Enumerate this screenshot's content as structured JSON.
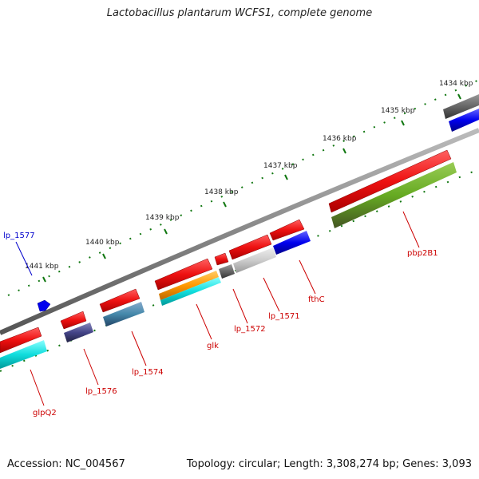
{
  "title": "Lactobacillus plantarum WCFS1, complete genome",
  "accession": "Accession: NC_004567",
  "footer_info": "Topology: circular; Length: 3,308,274 bp; Genes: 3,093",
  "ruler": [
    "1434 kbp",
    "1435 kbp",
    "1436 kbp",
    "1437 kbp",
    "1438 kbp",
    "1439 kbp",
    "1440 kbp",
    "1441 kbp"
  ],
  "gene_labels": {
    "lp_1577": "lp_1577",
    "pbp2B1": "pbp2B1",
    "fthC": "fthC",
    "lp_1571": "lp_1571",
    "lp_1572": "lp_1572",
    "glk": "glk",
    "lp_1574": "lp_1574",
    "lp_1576": "lp_1576",
    "glpQ2": "glpQ2"
  },
  "colors": {
    "gene_red": "#ee1111",
    "label_red": "#cc0000",
    "label_blue": "#0000cc",
    "tick_green": "#117711",
    "backbone": "#888888"
  }
}
